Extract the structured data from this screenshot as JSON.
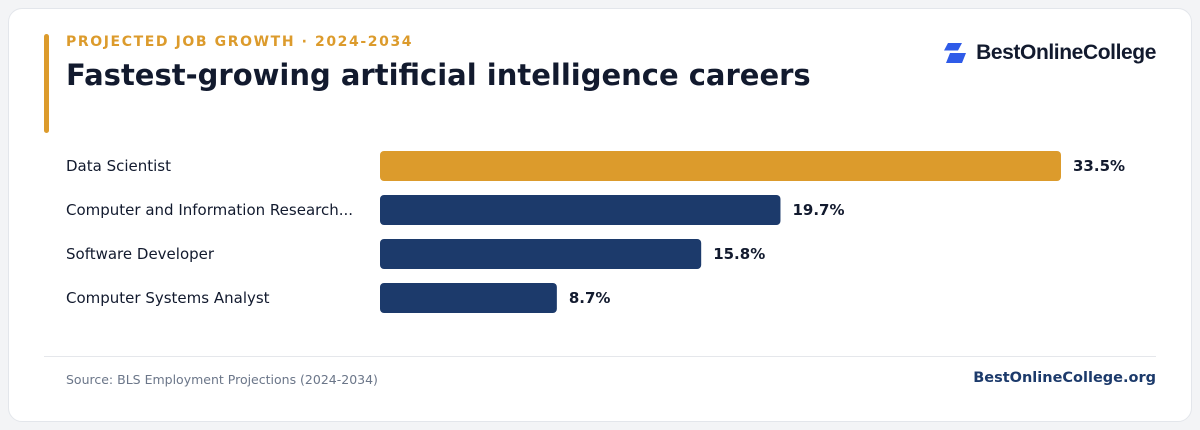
{
  "header": {
    "eyebrow": "PROJECTED JOB GROWTH · 2024-2034",
    "title": "Fastest-growing artificial intelligence careers"
  },
  "brand": {
    "logo_text": "BestOnlineCollege",
    "logo_icon": "brand-mark-icon",
    "site": "BestOnlineCollege.org"
  },
  "footer": {
    "source": "Source: BLS Employment Projections (2024-2034)"
  },
  "colors": {
    "accent": "#dc9b2c",
    "bar": "#1c3a6b",
    "text": "#121a2e",
    "brand_blue": "#2f5be8"
  },
  "chart_data": {
    "type": "bar",
    "orientation": "horizontal",
    "title": "",
    "xlabel": "",
    "ylabel": "",
    "xlim": [
      0,
      33.5
    ],
    "grid": false,
    "categories": [
      "Data Scientist",
      "Computer and Information Research...",
      "Software Developer",
      "Computer Systems Analyst"
    ],
    "values": [
      33.5,
      19.7,
      15.8,
      8.7
    ],
    "value_labels": [
      "33.5%",
      "19.7%",
      "15.8%",
      "8.7%"
    ],
    "highlight_index": 0
  }
}
